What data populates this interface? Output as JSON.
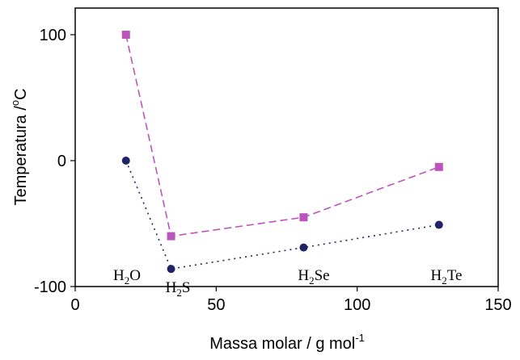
{
  "chart_data": {
    "type": "scatter",
    "xlabel": "Massa molar / g mol",
    "xlabel_superscript": "-1",
    "ylabel": "Temperatura /",
    "ylabel_unit_superscript": "o",
    "ylabel_unit": "C",
    "xlim": [
      0,
      150
    ],
    "ylim": [
      -100,
      100
    ],
    "x_ticks": [
      0,
      50,
      100,
      150
    ],
    "x_tick_labels": [
      "0",
      "50",
      "100",
      "150"
    ],
    "y_ticks": [
      100,
      0,
      -100
    ],
    "y_tick_labels": [
      "100",
      "0",
      "-100"
    ],
    "grid": false,
    "legend": "none",
    "series": [
      {
        "marker": "square",
        "color": "#bb55bb",
        "line_style": "dashed",
        "x": [
          18,
          34,
          81,
          129
        ],
        "y": [
          100,
          -60,
          -45,
          -5
        ]
      },
      {
        "marker": "circle",
        "color": "#222266",
        "line_style": "dotted",
        "x": [
          18,
          34,
          81,
          129
        ],
        "y": [
          0,
          -86,
          -69,
          -51
        ]
      }
    ],
    "annotations": [
      {
        "base": "H",
        "sub": "2",
        "rest": "O"
      },
      {
        "base": "H",
        "sub": "2",
        "rest": "S"
      },
      {
        "base": "H",
        "sub": "2",
        "rest": "Se"
      },
      {
        "base": "H",
        "sub": "2",
        "rest": "Te"
      }
    ]
  }
}
